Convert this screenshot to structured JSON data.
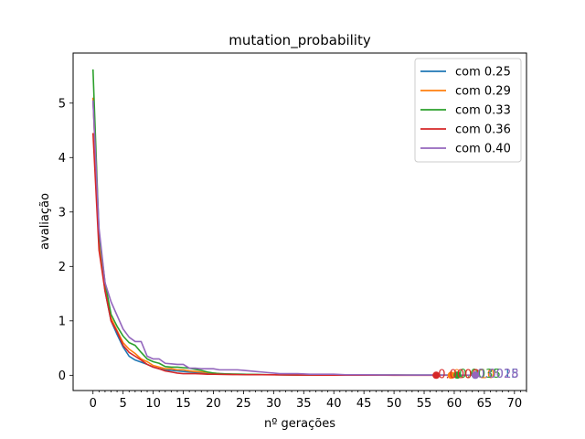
{
  "chart_data": {
    "type": "line",
    "title": "mutation_probability",
    "xlabel": "nº gerações",
    "ylabel": "avaliação",
    "xlim": [
      -3.3,
      72
    ],
    "ylim": [
      -0.28,
      5.92
    ],
    "xticks": [
      0,
      5,
      10,
      15,
      20,
      25,
      30,
      35,
      40,
      45,
      50,
      55,
      60,
      65,
      70
    ],
    "yticks": [
      0,
      1,
      2,
      3,
      4,
      5
    ],
    "legend_position": "top-right",
    "grid": false,
    "series": [
      {
        "name": "com 0.25",
        "color": "#1f77b4",
        "end_label": "0.0015",
        "x": [
          0,
          1,
          2,
          3,
          4,
          5,
          6,
          7,
          8,
          9,
          10,
          11,
          12,
          13,
          14,
          15,
          16,
          17,
          18,
          19,
          20,
          21,
          22,
          23,
          24,
          25,
          26,
          27,
          28,
          29,
          30,
          32,
          34,
          36,
          38,
          40,
          42,
          44,
          46,
          48,
          50,
          52,
          54,
          56,
          58,
          60,
          62,
          63.5
        ],
        "y": [
          5.1,
          2.5,
          1.55,
          1.0,
          0.75,
          0.52,
          0.35,
          0.28,
          0.24,
          0.2,
          0.15,
          0.12,
          0.1,
          0.09,
          0.08,
          0.07,
          0.06,
          0.05,
          0.04,
          0.035,
          0.03,
          0.03,
          0.025,
          0.02,
          0.02,
          0.02,
          0.015,
          0.015,
          0.012,
          0.01,
          0.01,
          0.008,
          0.006,
          0.005,
          0.005,
          0.004,
          0.004,
          0.003,
          0.003,
          0.003,
          0.002,
          0.002,
          0.002,
          0.002,
          0.002,
          0.0015,
          0.0015,
          0.0015
        ]
      },
      {
        "name": "com 0.29",
        "color": "#ff7f0e",
        "end_label": "0.0010",
        "x": [
          0,
          1,
          2,
          3,
          4,
          5,
          6,
          7,
          8,
          9,
          10,
          11,
          12,
          13,
          14,
          15,
          16,
          17,
          18,
          19,
          20,
          21,
          22,
          24,
          26,
          28,
          30,
          32,
          34,
          36,
          38,
          40,
          42,
          44,
          46,
          48,
          50,
          52,
          54,
          56,
          58,
          59.5
        ],
        "y": [
          5.1,
          2.4,
          1.6,
          1.05,
          0.82,
          0.6,
          0.48,
          0.4,
          0.3,
          0.25,
          0.18,
          0.15,
          0.12,
          0.12,
          0.1,
          0.1,
          0.08,
          0.07,
          0.06,
          0.05,
          0.04,
          0.03,
          0.02,
          0.02,
          0.015,
          0.012,
          0.01,
          0.008,
          0.007,
          0.006,
          0.005,
          0.004,
          0.003,
          0.003,
          0.003,
          0.002,
          0.002,
          0.002,
          0.0015,
          0.0012,
          0.001,
          0.001
        ]
      },
      {
        "name": "com 0.33",
        "color": "#2ca02c",
        "end_label": "0.0035",
        "x": [
          0,
          1,
          2,
          3,
          4,
          5,
          6,
          7,
          8,
          9,
          10,
          11,
          12,
          13,
          14,
          15,
          16,
          17,
          18,
          19,
          20,
          21,
          22,
          24,
          26,
          28,
          30,
          32,
          34,
          36,
          38,
          40,
          42,
          44,
          46,
          48,
          50,
          52,
          54,
          56,
          58,
          60.5
        ],
        "y": [
          5.62,
          2.6,
          1.7,
          1.12,
          0.9,
          0.72,
          0.6,
          0.55,
          0.42,
          0.3,
          0.25,
          0.22,
          0.16,
          0.15,
          0.15,
          0.14,
          0.13,
          0.11,
          0.09,
          0.06,
          0.04,
          0.03,
          0.025,
          0.02,
          0.015,
          0.012,
          0.01,
          0.008,
          0.007,
          0.006,
          0.006,
          0.005,
          0.005,
          0.004,
          0.004,
          0.004,
          0.004,
          0.0035,
          0.0035,
          0.0035,
          0.0035,
          0.0035
        ]
      },
      {
        "name": "com 0.36",
        "color": "#d62728",
        "end_label": "0.0008",
        "x": [
          0,
          1,
          2,
          3,
          4,
          5,
          6,
          7,
          8,
          9,
          10,
          11,
          12,
          13,
          14,
          15,
          16,
          17,
          18,
          19,
          20,
          22,
          24,
          26,
          28,
          30,
          32,
          34,
          36,
          38,
          40,
          42,
          44,
          46,
          48,
          50,
          52,
          54,
          56,
          57
        ],
        "y": [
          4.45,
          2.3,
          1.55,
          1.0,
          0.8,
          0.55,
          0.42,
          0.35,
          0.28,
          0.2,
          0.15,
          0.12,
          0.08,
          0.06,
          0.04,
          0.03,
          0.03,
          0.03,
          0.025,
          0.02,
          0.02,
          0.015,
          0.012,
          0.01,
          0.01,
          0.008,
          0.006,
          0.005,
          0.004,
          0.003,
          0.003,
          0.002,
          0.002,
          0.0015,
          0.0012,
          0.001,
          0.001,
          0.0008,
          0.0008,
          0.0008
        ]
      },
      {
        "name": "com 0.40",
        "color": "#9467bd",
        "end_label": "0.0028",
        "x": [
          0,
          1,
          2,
          3,
          4,
          5,
          6,
          7,
          8,
          9,
          10,
          11,
          12,
          13,
          14,
          15,
          16,
          17,
          18,
          19,
          20,
          21,
          22,
          23,
          24,
          25,
          26,
          27,
          28,
          29,
          30,
          31,
          32,
          34,
          36,
          38,
          40,
          42,
          44,
          46,
          48,
          50,
          52,
          54,
          56,
          58,
          60,
          62,
          63.5
        ],
        "y": [
          5.05,
          2.7,
          1.7,
          1.35,
          1.1,
          0.85,
          0.7,
          0.62,
          0.62,
          0.35,
          0.3,
          0.3,
          0.22,
          0.21,
          0.2,
          0.2,
          0.13,
          0.13,
          0.12,
          0.12,
          0.12,
          0.1,
          0.1,
          0.1,
          0.1,
          0.09,
          0.08,
          0.07,
          0.06,
          0.05,
          0.04,
          0.03,
          0.03,
          0.03,
          0.02,
          0.02,
          0.02,
          0.01,
          0.01,
          0.008,
          0.007,
          0.006,
          0.005,
          0.004,
          0.004,
          0.003,
          0.003,
          0.0028,
          0.0028
        ]
      }
    ]
  }
}
